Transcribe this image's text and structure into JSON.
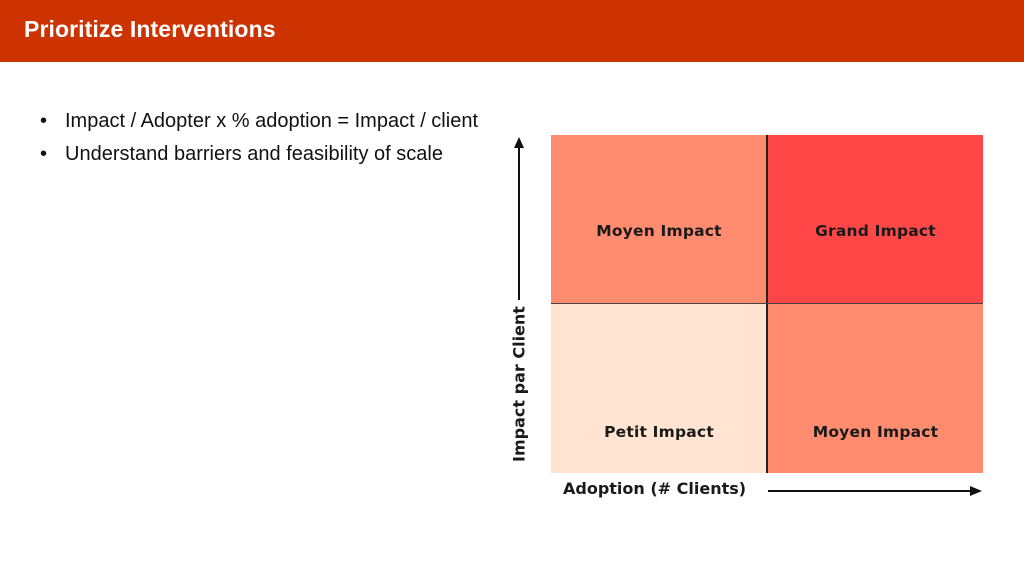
{
  "slide": {
    "title": "Prioritize Interventions",
    "accent_color": "#cc3300"
  },
  "bullets": [
    "Impact / Adopter x % adoption = Impact / client",
    "Understand barriers and feasibility of scale"
  ],
  "matrix": {
    "x_axis_label": "Adoption (# Clients)",
    "y_axis_label": "Impact par Client",
    "quadrants": {
      "top_left": {
        "label": "Moyen Impact",
        "color": "#ff8c6e"
      },
      "top_right": {
        "label": "Grand Impact",
        "color": "#ff4747"
      },
      "bottom_left": {
        "label": "Petit Impact",
        "color": "#ffe5d1"
      },
      "bottom_right": {
        "label": "Moyen Impact",
        "color": "#ff8c6e"
      }
    }
  }
}
